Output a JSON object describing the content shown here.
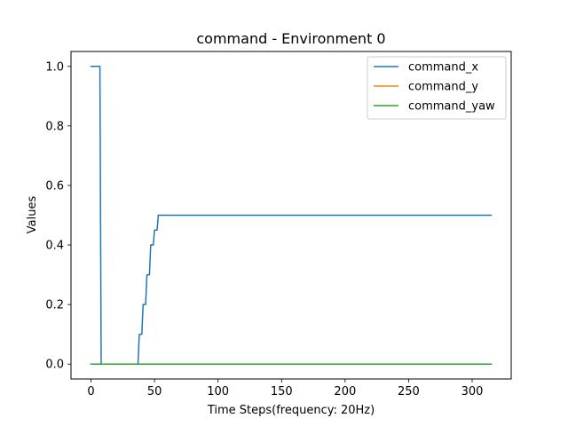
{
  "chart_data": {
    "type": "line",
    "title": "command - Environment 0",
    "xlabel": "Time Steps(frequency: 20Hz)",
    "ylabel": "Values",
    "xlim": [
      -15.75,
      330.75
    ],
    "ylim": [
      -0.05,
      1.05
    ],
    "xticks": [
      0,
      50,
      100,
      150,
      200,
      250,
      300
    ],
    "yticks": [
      0.0,
      0.2,
      0.4,
      0.6,
      0.8,
      1.0
    ],
    "xtick_labels": [
      "0",
      "50",
      "100",
      "150",
      "200",
      "250",
      "300"
    ],
    "ytick_labels": [
      "0.0",
      "0.2",
      "0.4",
      "0.6",
      "0.8",
      "1.0"
    ],
    "grid": false,
    "legend_position": "top-right",
    "series": [
      {
        "name": "command_x",
        "color": "#1f77b4",
        "x": [
          0,
          7,
          8,
          37,
          38,
          40,
          41,
          43,
          44,
          46,
          47,
          49,
          50,
          52,
          53,
          315
        ],
        "y": [
          1.0,
          1.0,
          0.0,
          0.0,
          0.1,
          0.1,
          0.2,
          0.2,
          0.3,
          0.3,
          0.4,
          0.4,
          0.45,
          0.45,
          0.5,
          0.5
        ]
      },
      {
        "name": "command_y",
        "color": "#ff7f0e",
        "x": [
          0,
          315
        ],
        "y": [
          0.0,
          0.0
        ]
      },
      {
        "name": "command_yaw",
        "color": "#2ca02c",
        "x": [
          0,
          315
        ],
        "y": [
          0.0,
          0.0
        ]
      }
    ]
  }
}
